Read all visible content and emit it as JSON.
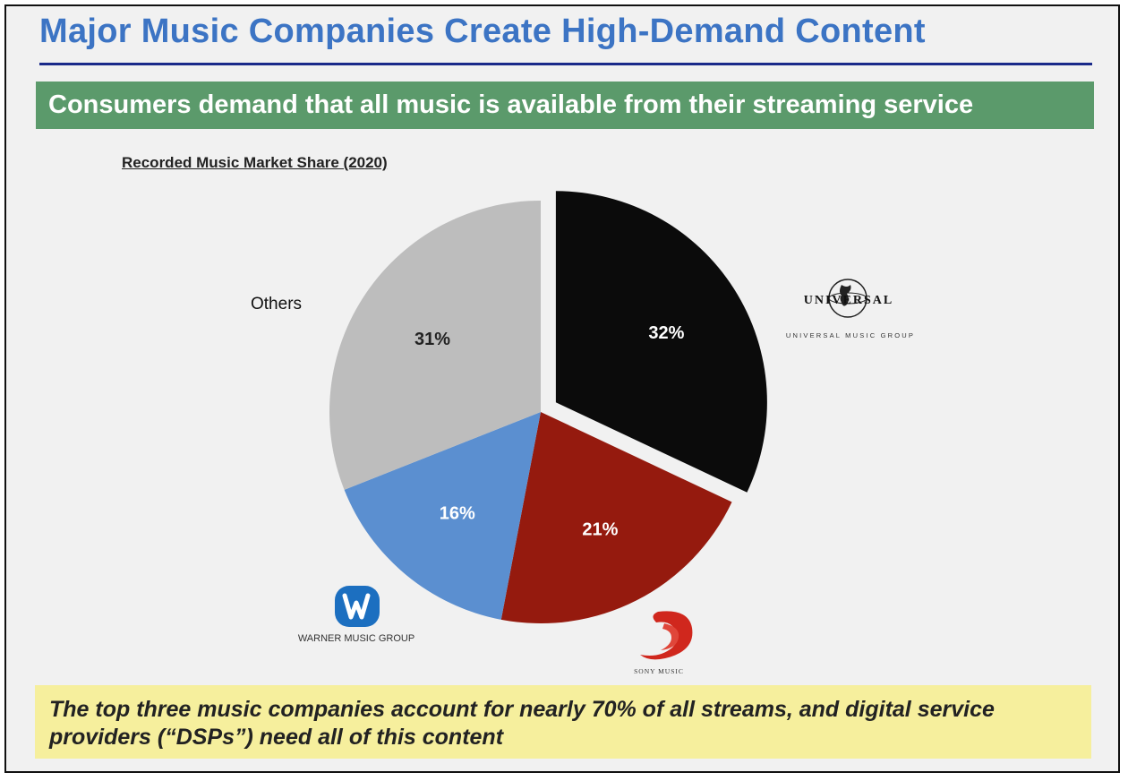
{
  "slide": {
    "title": "Major Music Companies Create High-Demand Content",
    "banner": "Consumers demand that all music is available from their streaming service",
    "callout": "The top three music companies account for nearly 70% of all streams, and digital service providers (“DSPs”) need all of this content"
  },
  "chart_data": {
    "type": "pie",
    "title": "Recorded Music Market Share (2020)",
    "slices": [
      {
        "label": "UNIVERSAL MUSIC GROUP",
        "value": 32,
        "display": "32%",
        "color": "#0b0b0b",
        "exploded": true
      },
      {
        "label": "SONY MUSIC",
        "value": 21,
        "display": "21%",
        "color": "#951a0e"
      },
      {
        "label": "WARNER MUSIC GROUP",
        "value": 16,
        "display": "16%",
        "color": "#5b8fd0"
      },
      {
        "label": "Others",
        "value": 31,
        "display": "31%",
        "color": "#bdbdbd"
      }
    ],
    "legend": "labels beside slices"
  },
  "logos": {
    "universal_wordmark": "UNIVERSAL",
    "universal_group": "UNIVERSAL MUSIC GROUP",
    "warner_group": "WARNER MUSIC GROUP",
    "sony": "SONY MUSIC",
    "others_label": "Others"
  },
  "icons": {
    "universal": "universal-globe-icon",
    "warner": "warner-w-shield-icon",
    "sony": "sony-music-swirl-icon"
  }
}
